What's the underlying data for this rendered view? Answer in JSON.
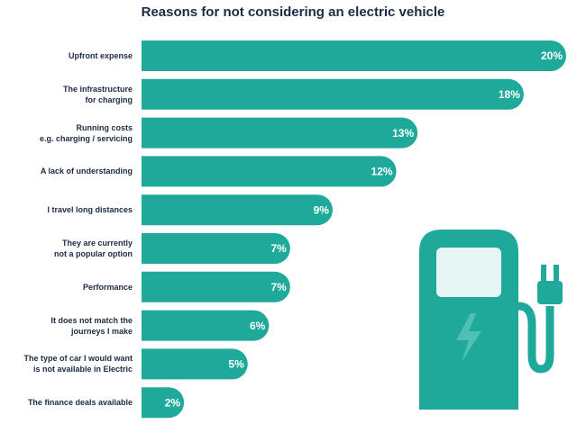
{
  "chart_data": {
    "type": "bar",
    "orientation": "horizontal",
    "title": "Reasons for not considering an electric vehicle",
    "categories": [
      "Upfront expense",
      "The infrastructure\nfor charging",
      "Running costs\ne.g. charging / servicing",
      "A lack of understanding",
      "I travel long distances",
      "They are currently\nnot a popular option",
      "Performance",
      "It does not match the\njourneys I make",
      "The type of car I would want\nis not available in Electric",
      "The finance deals available"
    ],
    "values": [
      20,
      18,
      13,
      12,
      9,
      7,
      7,
      6,
      5,
      2
    ],
    "value_labels": [
      "20%",
      "18%",
      "13%",
      "12%",
      "9%",
      "7%",
      "7%",
      "6%",
      "5%",
      "2%"
    ],
    "color": "#1ea99b"
  }
}
